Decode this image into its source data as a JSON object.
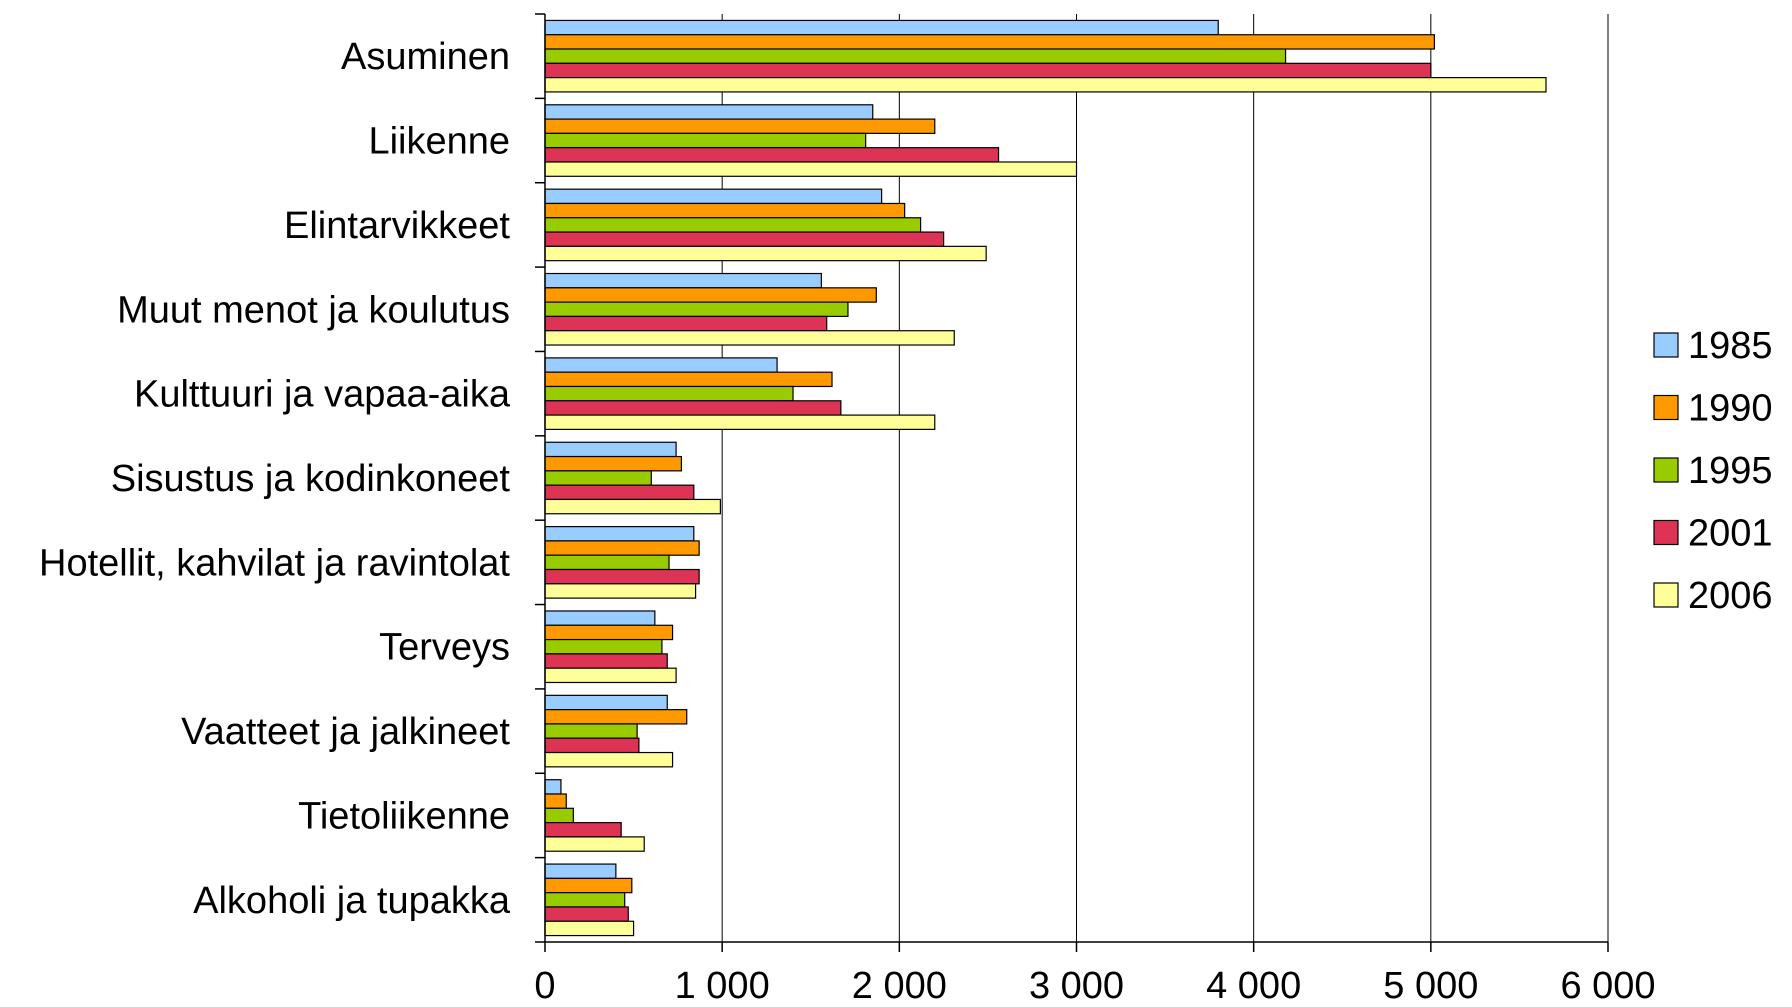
{
  "chart_data": {
    "type": "bar",
    "orientation": "horizontal",
    "categories": [
      "Asuminen",
      "Liikenne",
      "Elintarvikkeet",
      "Muut menot ja koulutus",
      "Kulttuuri ja vapaa-aika",
      "Sisustus ja kodinkoneet",
      "Hotellit, kahvilat ja ravintolat",
      "Terveys",
      "Vaatteet ja jalkineet",
      "Tietoliikenne",
      "Alkoholi ja tupakka"
    ],
    "series": [
      {
        "name": "1985",
        "color": "#99ccff",
        "values": [
          3800,
          1850,
          1900,
          1560,
          1310,
          740,
          840,
          620,
          690,
          90,
          400
        ]
      },
      {
        "name": "1990",
        "color": "#ff9900",
        "values": [
          5020,
          2200,
          2030,
          1870,
          1620,
          770,
          870,
          720,
          800,
          120,
          490
        ]
      },
      {
        "name": "1995",
        "color": "#99cc00",
        "values": [
          4180,
          1810,
          2120,
          1710,
          1400,
          600,
          700,
          660,
          520,
          160,
          450
        ]
      },
      {
        "name": "2001",
        "color": "#dd3355",
        "values": [
          5000,
          2560,
          2250,
          1590,
          1670,
          840,
          870,
          690,
          530,
          430,
          470
        ]
      },
      {
        "name": "2006",
        "color": "#ffff99",
        "values": [
          5650,
          3000,
          2490,
          2310,
          2200,
          990,
          850,
          740,
          720,
          560,
          500
        ]
      }
    ],
    "x_ticks": [
      "0",
      "1 000",
      "2 000",
      "3 000",
      "4 000",
      "5 000",
      "6 000"
    ],
    "xlim": [
      0,
      6000
    ],
    "xlabel": "",
    "ylabel": "",
    "title": "",
    "grid": "vertical",
    "legend": "right"
  }
}
